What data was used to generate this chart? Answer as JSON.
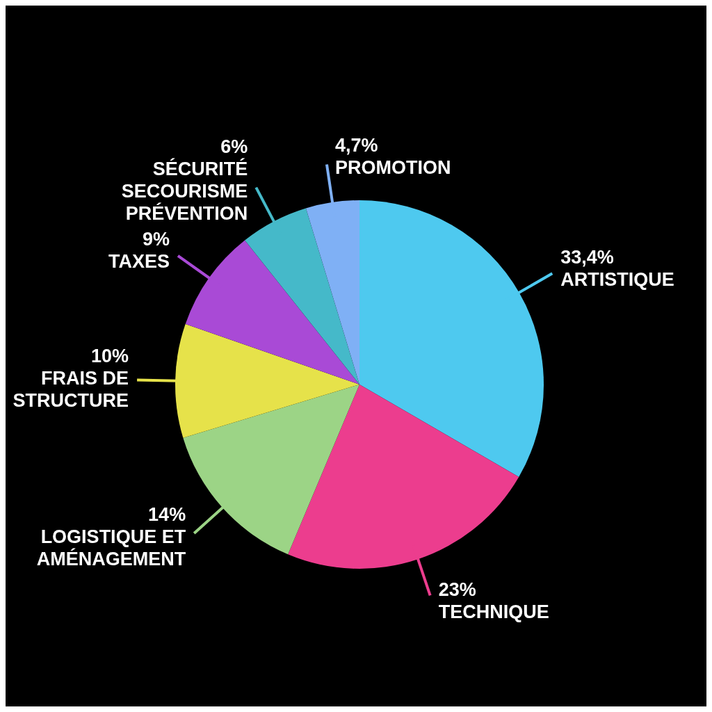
{
  "chart_data": {
    "type": "pie",
    "categories": [
      "ARTISTIQUE",
      "TECHNIQUE",
      "LOGISTIQUE ET AMÉNAGEMENT",
      "FRAIS DE STRUCTURE",
      "TAXES",
      "SÉCURITÉ SECOURISME PRÉVENTION",
      "PROMOTION"
    ],
    "values": [
      33.4,
      23,
      14,
      10,
      9,
      6,
      4.7
    ],
    "value_labels": [
      "33,4%",
      "23%",
      "14%",
      "10%",
      "9%",
      "6%",
      "4,7%"
    ],
    "colors": [
      "#4ec9ef",
      "#ec3d8e",
      "#9cd486",
      "#e6e24a",
      "#a94ad6",
      "#45b9c9",
      "#7fb0f5"
    ]
  }
}
